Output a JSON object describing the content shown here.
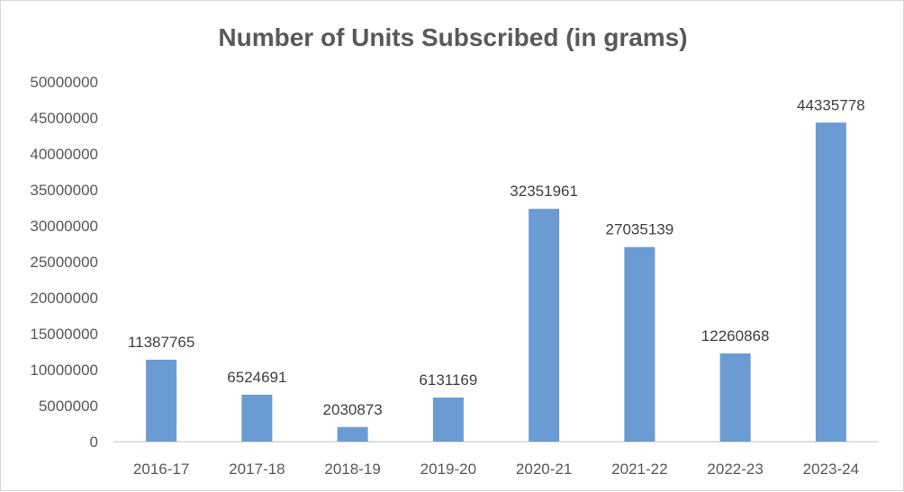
{
  "chart_data": {
    "type": "bar",
    "title": "Number of Units Subscribed (in grams)",
    "xlabel": "",
    "ylabel": "",
    "categories": [
      "2016-17",
      "2017-18",
      "2018-19",
      "2019-20",
      "2020-21",
      "2021-22",
      "2022-23",
      "2023-24"
    ],
    "values": [
      11387765,
      6524691,
      2030873,
      6131169,
      32351961,
      27035139,
      12260868,
      44335778
    ],
    "data_labels": [
      "11387765",
      "6524691",
      "2030873",
      "6131169",
      "32351961",
      "27035139",
      "12260868",
      "44335778"
    ],
    "ylim": [
      0,
      50000000
    ],
    "yticks": [
      0,
      5000000,
      10000000,
      15000000,
      20000000,
      25000000,
      30000000,
      35000000,
      40000000,
      45000000,
      50000000
    ],
    "ytick_labels": [
      "0",
      "5000000",
      "10000000",
      "15000000",
      "20000000",
      "25000000",
      "30000000",
      "35000000",
      "40000000",
      "45000000",
      "50000000"
    ],
    "grid": false,
    "legend": "none",
    "colors": {
      "bar": "#6a9bd2",
      "axis": "#bfbfbf",
      "text": "#595959"
    }
  }
}
